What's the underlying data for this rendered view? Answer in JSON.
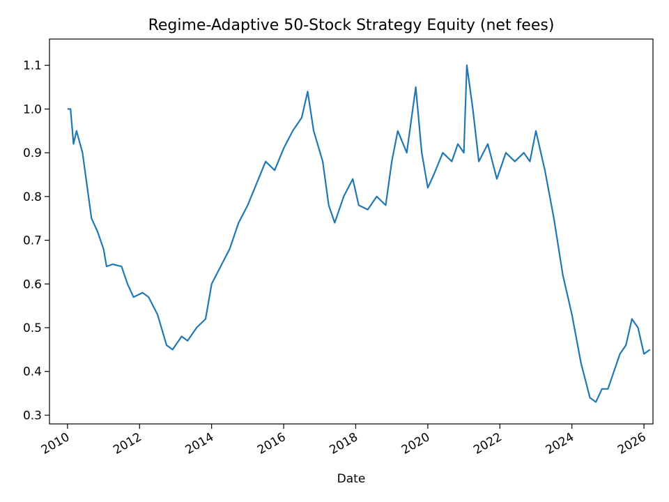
{
  "chart_data": {
    "type": "line",
    "title": "Regime-Adaptive 50-Stock Strategy Equity (net fees)",
    "xlabel": "Date",
    "ylabel": "",
    "x_tick_labels": [
      "2010",
      "2012",
      "2014",
      "2016",
      "2018",
      "2020",
      "2022",
      "2024",
      "2026"
    ],
    "y_tick_labels": [
      "0.3",
      "0.4",
      "0.5",
      "0.6",
      "0.7",
      "0.8",
      "0.9",
      "1.0",
      "1.1"
    ],
    "xlim": [
      "2009-07",
      "2026-04"
    ],
    "ylim": [
      0.28,
      1.16
    ],
    "grid": false,
    "legend": "none",
    "series": [
      {
        "color": "#1f77b4",
        "points": [
          [
            "2010-01",
            1.0
          ],
          [
            "2010-02",
            1.0
          ],
          [
            "2010-03",
            0.92
          ],
          [
            "2010-04",
            0.95
          ],
          [
            "2010-06",
            0.9
          ],
          [
            "2010-08",
            0.8
          ],
          [
            "2010-09",
            0.75
          ],
          [
            "2010-11",
            0.72
          ],
          [
            "2011-01",
            0.68
          ],
          [
            "2011-02",
            0.64
          ],
          [
            "2011-04",
            0.645
          ],
          [
            "2011-07",
            0.64
          ],
          [
            "2011-09",
            0.6
          ],
          [
            "2011-11",
            0.57
          ],
          [
            "2012-02",
            0.58
          ],
          [
            "2012-04",
            0.57
          ],
          [
            "2012-07",
            0.53
          ],
          [
            "2012-10",
            0.46
          ],
          [
            "2012-12",
            0.45
          ],
          [
            "2012-02",
            0.58
          ],
          [
            "2013-01",
            0.46
          ],
          [
            "2013-03",
            0.48
          ],
          [
            "2013-05",
            0.47
          ],
          [
            "2013-08",
            0.5
          ],
          [
            "2013-11",
            0.52
          ],
          [
            "2014-01",
            0.6
          ],
          [
            "2014-04",
            0.64
          ],
          [
            "2014-07",
            0.68
          ],
          [
            "2014-10",
            0.74
          ],
          [
            "2015-01",
            0.78
          ],
          [
            "2015-04",
            0.83
          ],
          [
            "2015-07",
            0.88
          ],
          [
            "2015-10",
            0.86
          ],
          [
            "2016-01",
            0.91
          ],
          [
            "2016-04",
            0.95
          ],
          [
            "2016-07",
            0.98
          ],
          [
            "2016-09",
            1.04
          ],
          [
            "2016-11",
            0.95
          ],
          [
            "2017-02",
            0.88
          ],
          [
            "2017-04",
            0.78
          ],
          [
            "2017-06",
            0.74
          ],
          [
            "2017-09",
            0.8
          ],
          [
            "2017-12",
            0.84
          ],
          [
            "2018-02",
            0.78
          ],
          [
            "2018-05",
            0.77
          ],
          [
            "2018-08",
            0.8
          ],
          [
            "2018-11",
            0.78
          ],
          [
            "2019-01",
            0.88
          ],
          [
            "2019-03",
            0.95
          ],
          [
            "2019-06",
            0.9
          ],
          [
            "2019-09",
            1.05
          ],
          [
            "2019-11",
            0.9
          ],
          [
            "2020-01",
            0.82
          ],
          [
            "2020-03",
            0.85
          ],
          [
            "2020-06",
            0.9
          ],
          [
            "2020-09",
            0.88
          ],
          [
            "2020-11",
            0.92
          ],
          [
            "2021-01",
            0.9
          ],
          [
            "2021-02",
            1.1
          ],
          [
            "2021-04",
            1.0
          ],
          [
            "2021-06",
            0.88
          ],
          [
            "2021-09",
            0.92
          ],
          [
            "2021-12",
            0.84
          ],
          [
            "2022-03",
            0.9
          ],
          [
            "2022-06",
            0.88
          ],
          [
            "2022-09",
            0.9
          ],
          [
            "2022-11",
            0.88
          ],
          [
            "2023-01",
            0.95
          ],
          [
            "2023-04",
            0.86
          ],
          [
            "2023-07",
            0.75
          ],
          [
            "2023-10",
            0.62
          ],
          [
            "2024-01",
            0.53
          ],
          [
            "2024-04",
            0.42
          ],
          [
            "2024-07",
            0.34
          ],
          [
            "2024-09",
            0.33
          ],
          [
            "2024-11",
            0.36
          ],
          [
            "2025-01",
            0.36
          ],
          [
            "2025-03",
            0.4
          ],
          [
            "2025-05",
            0.44
          ],
          [
            "2025-07",
            0.46
          ],
          [
            "2025-09",
            0.52
          ],
          [
            "2025-11",
            0.5
          ],
          [
            "2026-01",
            0.44
          ],
          [
            "2026-03",
            0.45
          ]
        ]
      }
    ]
  }
}
